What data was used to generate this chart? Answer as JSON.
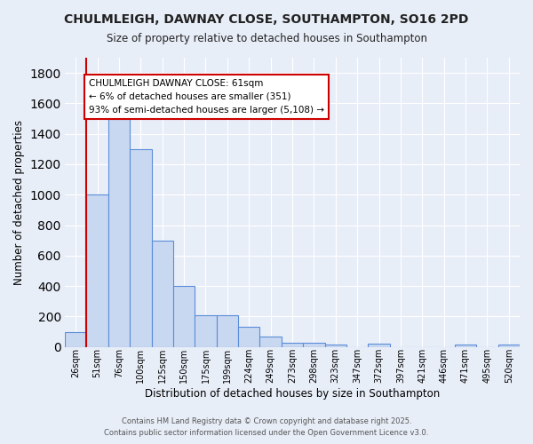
{
  "title": "CHULMLEIGH, DAWNAY CLOSE, SOUTHAMPTON, SO16 2PD",
  "subtitle": "Size of property relative to detached houses in Southampton",
  "xlabel": "Distribution of detached houses by size in Southampton",
  "ylabel": "Number of detached properties",
  "categories": [
    "26sqm",
    "51sqm",
    "76sqm",
    "100sqm",
    "125sqm",
    "150sqm",
    "175sqm",
    "199sqm",
    "224sqm",
    "249sqm",
    "273sqm",
    "298sqm",
    "323sqm",
    "347sqm",
    "372sqm",
    "397sqm",
    "421sqm",
    "446sqm",
    "471sqm",
    "495sqm",
    "520sqm"
  ],
  "values": [
    100,
    1000,
    1500,
    1300,
    700,
    400,
    210,
    210,
    130,
    70,
    25,
    25,
    15,
    0,
    20,
    0,
    0,
    0,
    15,
    0,
    15
  ],
  "bar_color": "#c8d8f0",
  "bar_edge_color": "#5b8dd9",
  "red_line_x": 0.5,
  "annotation_text": "CHULMLEIGH DAWNAY CLOSE: 61sqm\n← 6% of detached houses are smaller (351)\n93% of semi-detached houses are larger (5,108) →",
  "annotation_box_color": "#ffffff",
  "annotation_box_edge": "#cc0000",
  "red_line_color": "#cc0000",
  "ylim": [
    0,
    1900
  ],
  "yticks": [
    0,
    200,
    400,
    600,
    800,
    1000,
    1200,
    1400,
    1600,
    1800
  ],
  "background_color": "#e8eef8",
  "grid_color": "#ffffff",
  "footer1": "Contains HM Land Registry data © Crown copyright and database right 2025.",
  "footer2": "Contains public sector information licensed under the Open Government Licence v3.0."
}
